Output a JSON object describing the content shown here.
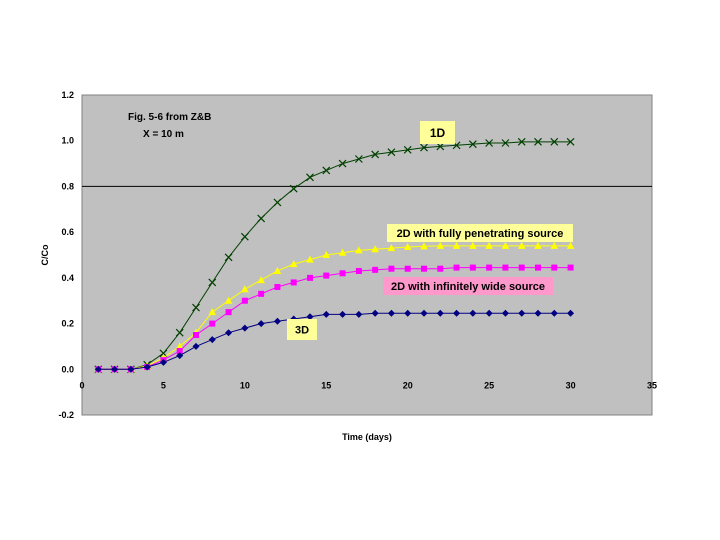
{
  "chart_data": {
    "type": "line",
    "xlabel": "Time (days)",
    "ylabel": "C/Co",
    "xlim": [
      0,
      35
    ],
    "ylim": [
      -0.2,
      1.2
    ],
    "xticks": [
      0,
      5,
      10,
      15,
      20,
      25,
      30,
      35
    ],
    "yticks": [
      "-0.2",
      "0.0",
      "0.2",
      "0.4",
      "0.6",
      "0.8",
      "1.0",
      "1.2"
    ],
    "ytick_values": [
      -0.2,
      0.0,
      0.2,
      0.4,
      0.6,
      0.8,
      1.0,
      1.2
    ],
    "reference_line_y": 0.8,
    "plot_background": "#c0c0c0",
    "annotation": [
      "Fig. 5-6 from Z&B",
      "X = 10 m"
    ],
    "x": [
      1,
      2,
      3,
      4,
      5,
      6,
      7,
      8,
      9,
      10,
      11,
      12,
      13,
      14,
      15,
      16,
      17,
      18,
      19,
      20,
      21,
      22,
      23,
      24,
      25,
      26,
      27,
      28,
      29,
      30
    ],
    "series": [
      {
        "label": "1D",
        "label_bg": "#ffff99",
        "color": "#004000",
        "marker": "x",
        "values": [
          0.0,
          0.0,
          0.0,
          0.02,
          0.07,
          0.16,
          0.27,
          0.38,
          0.49,
          0.58,
          0.66,
          0.73,
          0.79,
          0.84,
          0.87,
          0.9,
          0.92,
          0.94,
          0.95,
          0.96,
          0.97,
          0.975,
          0.98,
          0.985,
          0.99,
          0.99,
          0.995,
          0.995,
          0.995,
          0.995
        ]
      },
      {
        "label": "2D with  fully penetrating source",
        "label_bg": "#ffff99",
        "color": "#ffff00",
        "marker": "triangle",
        "values": [
          0.0,
          0.0,
          0.0,
          0.015,
          0.05,
          0.1,
          0.16,
          0.25,
          0.3,
          0.35,
          0.39,
          0.43,
          0.46,
          0.48,
          0.5,
          0.51,
          0.52,
          0.525,
          0.53,
          0.535,
          0.538,
          0.54,
          0.54,
          0.54,
          0.54,
          0.54,
          0.54,
          0.54,
          0.54,
          0.54
        ]
      },
      {
        "label": "2D with infinitely wide source",
        "label_bg": "#ff99cc",
        "color": "#ff00ff",
        "marker": "square",
        "values": [
          0.0,
          0.0,
          0.0,
          0.01,
          0.04,
          0.08,
          0.15,
          0.2,
          0.25,
          0.3,
          0.33,
          0.36,
          0.38,
          0.4,
          0.41,
          0.42,
          0.43,
          0.435,
          0.44,
          0.44,
          0.44,
          0.44,
          0.445,
          0.445,
          0.445,
          0.445,
          0.445,
          0.445,
          0.445,
          0.445
        ]
      },
      {
        "label": "3D",
        "label_bg": "#ffff99",
        "color": "#000080",
        "marker": "diamond",
        "values": [
          0.0,
          0.0,
          0.0,
          0.01,
          0.03,
          0.06,
          0.1,
          0.13,
          0.16,
          0.18,
          0.2,
          0.21,
          0.22,
          0.23,
          0.24,
          0.24,
          0.24,
          0.245,
          0.245,
          0.245,
          0.245,
          0.245,
          0.245,
          0.245,
          0.245,
          0.245,
          0.245,
          0.245,
          0.245,
          0.245
        ]
      }
    ]
  }
}
